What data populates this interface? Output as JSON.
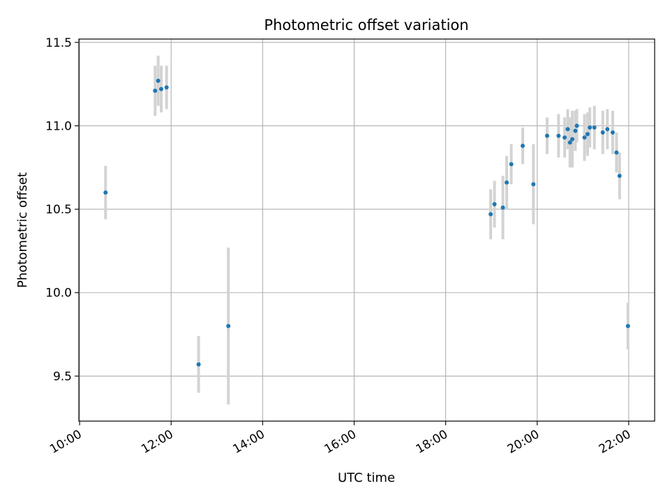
{
  "chart_data": {
    "type": "scatter",
    "title": "Photometric offset variation",
    "xlabel": "UTC time",
    "ylabel": "Photometric offset",
    "x_axis": {
      "kind": "time",
      "range": [
        "09:59",
        "22:34"
      ],
      "ticks": [
        "10:00",
        "12:00",
        "14:00",
        "16:00",
        "18:00",
        "20:00",
        "22:00"
      ]
    },
    "y_axis": {
      "range": [
        9.23,
        11.52
      ],
      "ticks": [
        9.5,
        10.0,
        10.5,
        11.0,
        11.5
      ],
      "tick_labels": [
        "9.5",
        "10.0",
        "10.5",
        "11.0",
        "11.5"
      ]
    },
    "grid": true,
    "legend": "none",
    "colors": {
      "point": "#1f77b4",
      "errorbar": "#d3d3d3",
      "grid": "#b0b0b0"
    },
    "series": [
      {
        "points": [
          {
            "x": "10:34",
            "y": 10.6,
            "err": 0.16
          },
          {
            "x": "11:39",
            "y": 11.21,
            "err": 0.15
          },
          {
            "x": "11:43",
            "y": 11.27,
            "err": 0.15
          },
          {
            "x": "11:47",
            "y": 11.22,
            "err": 0.14
          },
          {
            "x": "11:54",
            "y": 11.23,
            "err": 0.13
          },
          {
            "x": "12:36",
            "y": 9.57,
            "err": 0.17
          },
          {
            "x": "13:15",
            "y": 9.8,
            "err": 0.47
          },
          {
            "x": "18:59",
            "y": 10.47,
            "err": 0.15
          },
          {
            "x": "19:04",
            "y": 10.53,
            "err": 0.14
          },
          {
            "x": "19:15",
            "y": 10.51,
            "err": 0.19
          },
          {
            "x": "19:20",
            "y": 10.66,
            "err": 0.16
          },
          {
            "x": "19:26",
            "y": 10.77,
            "err": 0.12
          },
          {
            "x": "19:41",
            "y": 10.88,
            "err": 0.11
          },
          {
            "x": "19:55",
            "y": 10.65,
            "err": 0.24
          },
          {
            "x": "20:13",
            "y": 10.94,
            "err": 0.11
          },
          {
            "x": "20:28",
            "y": 10.94,
            "err": 0.13
          },
          {
            "x": "20:36",
            "y": 10.93,
            "err": 0.12
          },
          {
            "x": "20:40",
            "y": 10.98,
            "err": 0.12
          },
          {
            "x": "20:43",
            "y": 10.9,
            "err": 0.15
          },
          {
            "x": "20:46",
            "y": 10.92,
            "err": 0.17
          },
          {
            "x": "20:50",
            "y": 10.97,
            "err": 0.12
          },
          {
            "x": "20:52",
            "y": 11.0,
            "err": 0.1
          },
          {
            "x": "21:02",
            "y": 10.93,
            "err": 0.14
          },
          {
            "x": "21:06",
            "y": 10.95,
            "err": 0.13
          },
          {
            "x": "21:09",
            "y": 10.99,
            "err": 0.12
          },
          {
            "x": "21:15",
            "y": 10.99,
            "err": 0.13
          },
          {
            "x": "21:26",
            "y": 10.96,
            "err": 0.13
          },
          {
            "x": "21:32",
            "y": 10.98,
            "err": 0.12
          },
          {
            "x": "21:39",
            "y": 10.96,
            "err": 0.13
          },
          {
            "x": "21:44",
            "y": 10.84,
            "err": 0.12
          },
          {
            "x": "21:48",
            "y": 10.7,
            "err": 0.14
          },
          {
            "x": "21:59",
            "y": 9.8,
            "err": 0.14
          }
        ]
      }
    ]
  }
}
